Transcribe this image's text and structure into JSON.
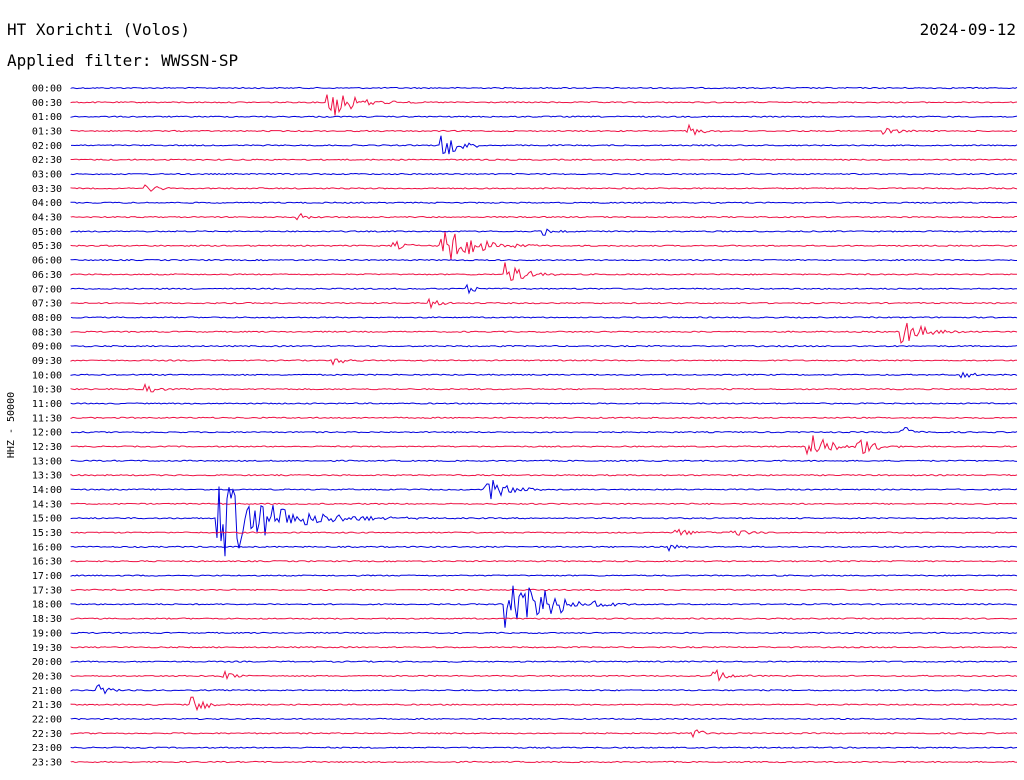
{
  "header": {
    "station": "HT Xorichti (Volos)",
    "date": "2024-09-12",
    "filter": "Applied filter: WWSSN-SP"
  },
  "chart_data": {
    "type": "line",
    "chart_kind": "helicorder",
    "title": "HT Xorichti (Volos)",
    "ylabel": "HHZ - 50000",
    "rows": [
      "00:00",
      "00:30",
      "01:00",
      "01:30",
      "02:00",
      "02:30",
      "03:00",
      "03:30",
      "04:00",
      "04:30",
      "05:00",
      "05:30",
      "06:00",
      "06:30",
      "07:00",
      "07:30",
      "08:00",
      "08:30",
      "09:00",
      "09:30",
      "10:00",
      "10:30",
      "11:00",
      "11:30",
      "12:00",
      "12:30",
      "13:00",
      "13:30",
      "14:00",
      "14:30",
      "15:00",
      "15:30",
      "16:00",
      "16:30",
      "17:00",
      "17:30",
      "18:00",
      "18:30",
      "19:00",
      "19:30",
      "20:00",
      "20:30",
      "21:00",
      "21:30",
      "22:00",
      "22:30",
      "23:00",
      "23:30"
    ],
    "x_range_minutes": [
      0,
      30
    ],
    "trace_colors": [
      "#0000dd",
      "#ee1144"
    ],
    "events": [
      {
        "row": "00:30",
        "minute": 8.2,
        "amplitude": 1.2
      },
      {
        "row": "01:30",
        "minute": 19.6,
        "amplitude": 0.4
      },
      {
        "row": "01:30",
        "minute": 25.8,
        "amplitude": 0.4
      },
      {
        "row": "02:00",
        "minute": 11.8,
        "amplitude": 0.8
      },
      {
        "row": "03:30",
        "minute": 2.4,
        "amplitude": 0.3
      },
      {
        "row": "04:30",
        "minute": 7.2,
        "amplitude": 0.3
      },
      {
        "row": "05:00",
        "minute": 15.0,
        "amplitude": 0.3
      },
      {
        "row": "05:30",
        "minute": 10.2,
        "amplitude": 0.4
      },
      {
        "row": "05:30",
        "minute": 11.8,
        "amplitude": 1.5
      },
      {
        "row": "06:30",
        "minute": 13.8,
        "amplitude": 0.8
      },
      {
        "row": "07:00",
        "minute": 12.6,
        "amplitude": 0.3
      },
      {
        "row": "07:30",
        "minute": 11.4,
        "amplitude": 0.4
      },
      {
        "row": "08:30",
        "minute": 26.4,
        "amplitude": 0.9
      },
      {
        "row": "09:30",
        "minute": 8.4,
        "amplitude": 0.3
      },
      {
        "row": "10:00",
        "minute": 28.2,
        "amplitude": 0.3
      },
      {
        "row": "10:30",
        "minute": 2.4,
        "amplitude": 0.3
      },
      {
        "row": "12:00",
        "minute": 26.4,
        "amplitude": 0.4
      },
      {
        "row": "12:30",
        "minute": 23.4,
        "amplitude": 0.9
      },
      {
        "row": "12:30",
        "minute": 25.0,
        "amplitude": 0.7
      },
      {
        "row": "14:00",
        "minute": 13.2,
        "amplitude": 0.9
      },
      {
        "row": "15:00",
        "minute": 4.7,
        "amplitude": 3.0
      },
      {
        "row": "15:30",
        "minute": 19.2,
        "amplitude": 0.4
      },
      {
        "row": "15:30",
        "minute": 21.0,
        "amplitude": 0.4
      },
      {
        "row": "16:00",
        "minute": 19.0,
        "amplitude": 0.3
      },
      {
        "row": "18:00",
        "minute": 13.8,
        "amplitude": 1.7
      },
      {
        "row": "18:00",
        "minute": 14.4,
        "amplitude": 1.7
      },
      {
        "row": "20:30",
        "minute": 4.8,
        "amplitude": 0.4
      },
      {
        "row": "20:30",
        "minute": 20.4,
        "amplitude": 0.5
      },
      {
        "row": "21:00",
        "minute": 0.9,
        "amplitude": 0.4
      },
      {
        "row": "21:30",
        "minute": 3.9,
        "amplitude": 0.6
      },
      {
        "row": "22:30",
        "minute": 19.8,
        "amplitude": 0.3
      }
    ]
  }
}
